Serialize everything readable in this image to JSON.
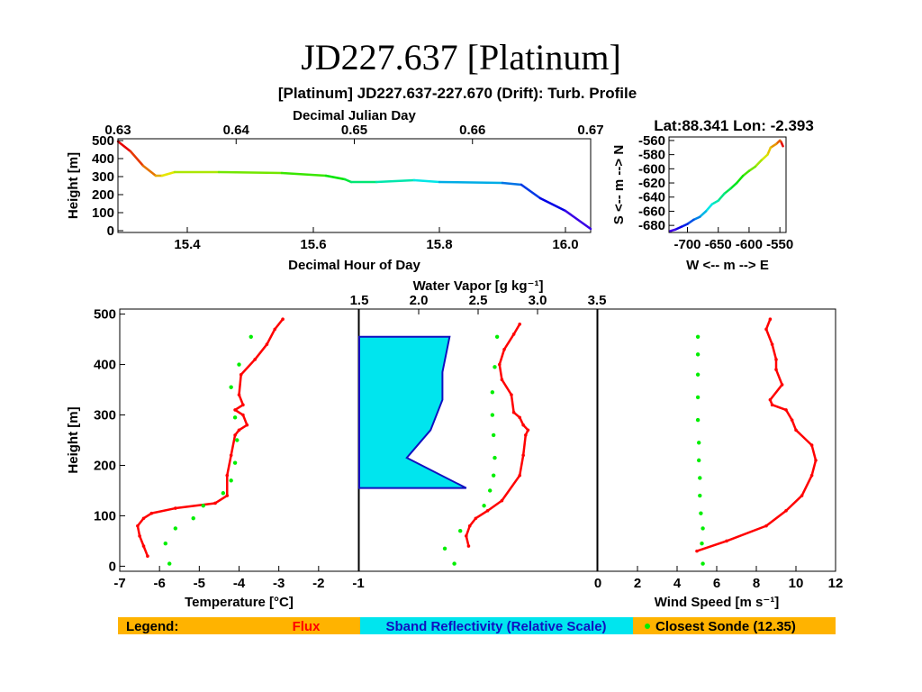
{
  "slide": {
    "title": "JD227.637 [Platinum]"
  },
  "figure": {
    "title": "[Platinum] JD227.637-227.670 (Drift): Turb. Profile",
    "location": "Lat:88.341 Lon:  -2.393"
  },
  "chart_data": [
    {
      "id": "height_time",
      "type": "line",
      "xlabel": "Decimal Hour of Day",
      "xlabel_top": "Decimal Julian Day",
      "ylabel": "Height [m]",
      "xlim": [
        15.29,
        16.04
      ],
      "x_top_lim": [
        0.63,
        0.67
      ],
      "ylim": [
        0,
        500
      ],
      "x_ticks": [
        "15.4",
        "15.6",
        "15.8",
        "16.0"
      ],
      "x_top_ticks": [
        "0.63",
        "0.64",
        "0.65",
        "0.66",
        "0.67"
      ],
      "y_ticks": [
        "500",
        "400",
        "300",
        "200",
        "100",
        "0"
      ],
      "color_by": "time (rainbow)",
      "x": [
        15.29,
        15.31,
        15.33,
        15.35,
        15.36,
        15.38,
        15.45,
        15.55,
        15.62,
        15.65,
        15.66,
        15.7,
        15.76,
        15.8,
        15.9,
        15.93,
        15.96,
        16.0,
        16.04
      ],
      "y": [
        495,
        440,
        360,
        305,
        305,
        325,
        325,
        320,
        305,
        285,
        270,
        270,
        280,
        270,
        265,
        255,
        180,
        110,
        10
      ]
    },
    {
      "id": "track",
      "type": "line",
      "xlabel": "W <-- m --> E",
      "ylabel": "S <-- m --> N",
      "xlim": [
        -730,
        -540
      ],
      "ylim": [
        -690,
        -555
      ],
      "x_ticks": [
        "-700",
        "-650",
        "-600",
        "-550"
      ],
      "y_ticks": [
        "-560",
        "-580",
        "-600",
        "-620",
        "-640",
        "-660",
        "-680"
      ],
      "color_by": "time (rainbow)",
      "x": [
        -545,
        -548,
        -550,
        -556,
        -565,
        -570,
        -580,
        -590,
        -600,
        -610,
        -620,
        -630,
        -640,
        -650,
        -660,
        -670,
        -680,
        -690,
        -700,
        -710,
        -720,
        -728
      ],
      "y": [
        -568,
        -562,
        -560,
        -565,
        -570,
        -580,
        -588,
        -597,
        -603,
        -610,
        -620,
        -628,
        -635,
        -645,
        -650,
        -660,
        -668,
        -672,
        -678,
        -682,
        -686,
        -688
      ]
    },
    {
      "id": "temperature",
      "type": "scatter",
      "xlabel": "Temperature [°C]",
      "ylabel": "Height [m]",
      "xlim": [
        -7,
        -1
      ],
      "ylim": [
        -10,
        510
      ],
      "x_ticks": [
        "-7",
        "-6",
        "-5",
        "-4",
        "-3",
        "-2",
        "-1"
      ],
      "y_ticks": [
        "500",
        "400",
        "300",
        "200",
        "100",
        "0"
      ],
      "series": [
        {
          "name": "Flux",
          "color": "#ff0000",
          "x": [
            -6.3,
            -6.4,
            -6.5,
            -6.55,
            -6.4,
            -6.2,
            -5.6,
            -4.6,
            -4.3,
            -4.3,
            -4.2,
            -4.1,
            -4.0,
            -3.8,
            -3.9,
            -4.1,
            -3.9,
            -4.0,
            -3.95,
            -3.6,
            -3.3,
            -3.1,
            -2.9
          ],
          "y": [
            20,
            40,
            60,
            80,
            95,
            105,
            115,
            125,
            140,
            180,
            220,
            260,
            270,
            280,
            300,
            310,
            320,
            340,
            380,
            410,
            440,
            470,
            490
          ]
        },
        {
          "name": "Closest Sonde (12.35)",
          "color": "#00ee00",
          "x": [
            -5.75,
            -5.85,
            -5.6,
            -5.15,
            -4.9,
            -4.4,
            -4.2,
            -4.1,
            -4.05,
            -4.1,
            -4.2,
            -4.0,
            -3.7
          ],
          "y": [
            5,
            45,
            75,
            95,
            120,
            145,
            170,
            205,
            250,
            295,
            355,
            400,
            455
          ]
        }
      ]
    },
    {
      "id": "water_vapor",
      "type": "area",
      "xlabel_top": "Water Vapor [g kg⁻¹]",
      "xlim": [
        1.5,
        3.5
      ],
      "ylim": [
        -10,
        510
      ],
      "x_ticks": [
        "1.5",
        "2.0",
        "2.5",
        "3.0",
        "3.5"
      ],
      "series": [
        {
          "name": "Sband Reflectivity (Relative Scale)",
          "color": "#00e5ee",
          "x": [
            0.0,
            0.45,
            0.2,
            0.3,
            0.35,
            0.35,
            0.38,
            0.0
          ],
          "y": [
            155,
            155,
            215,
            270,
            330,
            385,
            455,
            455
          ]
        },
        {
          "name": "Flux",
          "color": "#ff0000",
          "x": [
            2.42,
            2.4,
            2.43,
            2.48,
            2.58,
            2.7,
            2.85,
            2.88,
            2.9,
            2.92,
            2.88,
            2.85,
            2.8,
            2.78,
            2.7,
            2.68,
            2.72,
            2.8,
            2.85
          ],
          "y": [
            40,
            60,
            80,
            95,
            110,
            130,
            180,
            220,
            260,
            270,
            280,
            295,
            305,
            340,
            370,
            400,
            430,
            460,
            480
          ]
        },
        {
          "name": "Closest Sonde (12.35)",
          "color": "#00ee00",
          "x": [
            2.3,
            2.22,
            2.35,
            2.55,
            2.6,
            2.63,
            2.64,
            2.63,
            2.62,
            2.62,
            2.64,
            2.66
          ],
          "y": [
            5,
            35,
            70,
            120,
            150,
            180,
            215,
            260,
            300,
            345,
            395,
            455
          ]
        }
      ]
    },
    {
      "id": "wind_speed",
      "type": "scatter",
      "xlabel": "Wind Speed [m s⁻¹]",
      "xlim": [
        0,
        12
      ],
      "ylim": [
        -10,
        510
      ],
      "x_ticks": [
        "0",
        "2",
        "4",
        "6",
        "8",
        "10",
        "12"
      ],
      "series": [
        {
          "name": "Flux",
          "color": "#ff0000",
          "x": [
            5.0,
            6.5,
            8.5,
            9.5,
            10.3,
            10.8,
            11.0,
            10.8,
            10.0,
            9.8,
            9.5,
            8.8,
            8.7,
            9.3,
            9.0,
            9.0,
            8.8,
            8.5,
            8.7
          ],
          "y": [
            30,
            50,
            80,
            110,
            140,
            180,
            210,
            240,
            270,
            290,
            310,
            320,
            330,
            360,
            390,
            410,
            440,
            470,
            490
          ]
        },
        {
          "name": "Closest Sonde (12.35)",
          "color": "#00ee00",
          "x": [
            5.3,
            5.25,
            5.3,
            5.2,
            5.15,
            5.15,
            5.1,
            5.1,
            5.05,
            5.05,
            5.05,
            5.05,
            5.05
          ],
          "y": [
            5,
            45,
            75,
            105,
            140,
            175,
            210,
            245,
            290,
            335,
            380,
            420,
            455
          ]
        }
      ]
    }
  ],
  "legend": {
    "label": "Legend:",
    "items": [
      {
        "label": "Flux",
        "color": "#ff0000"
      },
      {
        "label": "Sband Reflectivity (Relative Scale)",
        "color": "#00e5ee"
      },
      {
        "label": "Closest Sonde (12.35)",
        "color": "#00ee00"
      }
    ],
    "bar_color": "#ffb300"
  }
}
